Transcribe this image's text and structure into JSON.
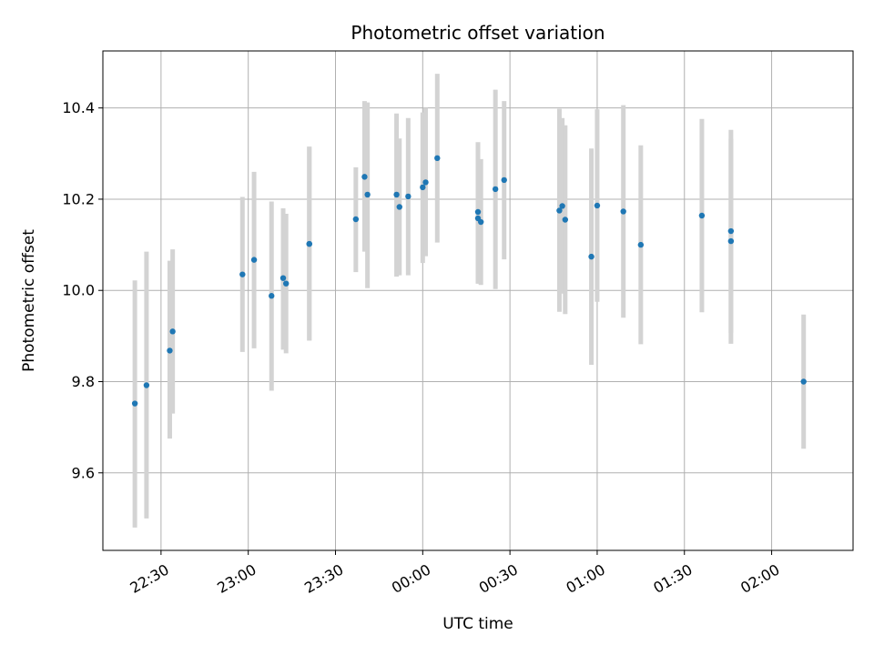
{
  "chart_data": {
    "type": "scatter",
    "title": "Photometric offset variation",
    "xlabel": "UTC time",
    "ylabel": "Photometric offset",
    "xlim": [
      "22:10",
      "02:28"
    ],
    "ylim": [
      9.43,
      10.525
    ],
    "grid": true,
    "x_ticks": [
      "22:30",
      "23:00",
      "23:30",
      "00:00",
      "00:30",
      "01:00",
      "01:30",
      "02:00"
    ],
    "y_ticks": [
      9.6,
      9.8,
      10.0,
      10.2,
      10.4
    ],
    "y_tick_labels": [
      "9.6",
      "9.8",
      "10.0",
      "10.2",
      "10.4"
    ],
    "point_color": "#1f77b4",
    "errorbar_color": "#d3d3d3",
    "points": [
      {
        "time": "22:21",
        "y": 9.752,
        "ylow": 9.48,
        "yhigh": 10.022
      },
      {
        "time": "22:25",
        "y": 9.792,
        "ylow": 9.5,
        "yhigh": 10.085
      },
      {
        "time": "22:33",
        "y": 9.868,
        "ylow": 9.675,
        "yhigh": 10.065
      },
      {
        "time": "22:34",
        "y": 9.91,
        "ylow": 9.73,
        "yhigh": 10.09
      },
      {
        "time": "22:58",
        "y": 10.035,
        "ylow": 9.865,
        "yhigh": 10.205
      },
      {
        "time": "23:02",
        "y": 10.067,
        "ylow": 9.873,
        "yhigh": 10.26
      },
      {
        "time": "23:08",
        "y": 9.988,
        "ylow": 9.78,
        "yhigh": 10.195
      },
      {
        "time": "23:12",
        "y": 10.027,
        "ylow": 9.87,
        "yhigh": 10.18
      },
      {
        "time": "23:13",
        "y": 10.015,
        "ylow": 9.862,
        "yhigh": 10.168
      },
      {
        "time": "23:21",
        "y": 10.102,
        "ylow": 9.89,
        "yhigh": 10.315
      },
      {
        "time": "23:21",
        "y": 10.102,
        "ylow": 9.89,
        "yhigh": 10.315
      },
      {
        "time": "23:37",
        "y": 10.156,
        "ylow": 10.04,
        "yhigh": 10.27
      },
      {
        "time": "23:40",
        "y": 10.249,
        "ylow": 10.085,
        "yhigh": 10.415
      },
      {
        "time": "23:41",
        "y": 10.21,
        "ylow": 10.005,
        "yhigh": 10.412
      },
      {
        "time": "23:51",
        "y": 10.21,
        "ylow": 10.03,
        "yhigh": 10.388
      },
      {
        "time": "23:52",
        "y": 10.183,
        "ylow": 10.033,
        "yhigh": 10.333
      },
      {
        "time": "23:55",
        "y": 10.206,
        "ylow": 10.033,
        "yhigh": 10.378
      },
      {
        "time": "00:00",
        "y": 10.226,
        "ylow": 10.06,
        "yhigh": 10.39
      },
      {
        "time": "00:01",
        "y": 10.237,
        "ylow": 10.075,
        "yhigh": 10.4
      },
      {
        "time": "00:05",
        "y": 10.29,
        "ylow": 10.105,
        "yhigh": 10.475
      },
      {
        "time": "00:19",
        "y": 10.172,
        "ylow": 10.015,
        "yhigh": 10.325
      },
      {
        "time": "00:19",
        "y": 10.158,
        "ylow": 10.015,
        "yhigh": 10.3
      },
      {
        "time": "00:20",
        "y": 10.15,
        "ylow": 10.012,
        "yhigh": 10.288
      },
      {
        "time": "00:25",
        "y": 10.222,
        "ylow": 10.003,
        "yhigh": 10.44
      },
      {
        "time": "00:28",
        "y": 10.242,
        "ylow": 10.068,
        "yhigh": 10.415
      },
      {
        "time": "00:47",
        "y": 10.175,
        "ylow": 9.953,
        "yhigh": 10.398
      },
      {
        "time": "00:48",
        "y": 10.185,
        "ylow": 9.993,
        "yhigh": 10.378
      },
      {
        "time": "00:49",
        "y": 10.155,
        "ylow": 9.948,
        "yhigh": 10.362
      },
      {
        "time": "00:58",
        "y": 10.074,
        "ylow": 9.837,
        "yhigh": 10.311
      },
      {
        "time": "01:00",
        "y": 10.186,
        "ylow": 9.975,
        "yhigh": 10.397
      },
      {
        "time": "01:09",
        "y": 10.173,
        "ylow": 9.94,
        "yhigh": 10.406
      },
      {
        "time": "01:15",
        "y": 10.1,
        "ylow": 9.882,
        "yhigh": 10.318
      },
      {
        "time": "01:36",
        "y": 10.164,
        "ylow": 9.952,
        "yhigh": 10.376
      },
      {
        "time": "01:46",
        "y": 10.13,
        "ylow": 9.907,
        "yhigh": 10.352
      },
      {
        "time": "01:46",
        "y": 10.108,
        "ylow": 9.883,
        "yhigh": 10.333
      },
      {
        "time": "02:11",
        "y": 9.8,
        "ylow": 9.653,
        "yhigh": 9.947
      }
    ]
  }
}
